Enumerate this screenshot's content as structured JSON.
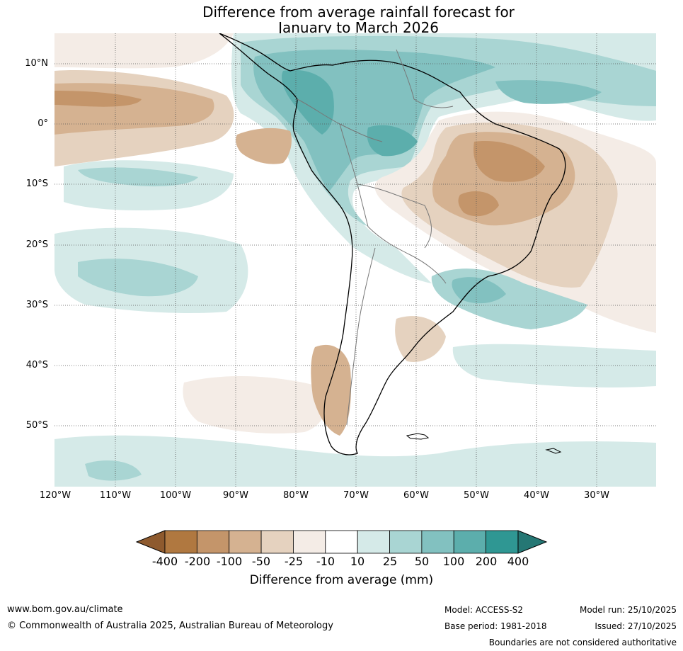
{
  "title": {
    "line1": "Difference from average rainfall forecast for",
    "line2": "January to March 2026"
  },
  "axes": {
    "lat_labels": [
      "10°N",
      "0°",
      "10°S",
      "20°S",
      "30°S",
      "40°S",
      "50°S"
    ],
    "lon_labels": [
      "120°W",
      "110°W",
      "100°W",
      "90°W",
      "80°W",
      "70°W",
      "60°W",
      "50°W",
      "40°W",
      "30°W"
    ]
  },
  "colorbar": {
    "title": "Difference from average (mm)",
    "tick_labels": [
      "-400",
      "-200",
      "-100",
      "-50",
      "-25",
      "-10",
      "10",
      "25",
      "50",
      "100",
      "200",
      "400"
    ],
    "colors": [
      "#8e5a2e",
      "#b07840",
      "#c4956a",
      "#d5b291",
      "#e5d2bf",
      "#f4ece6",
      "#ffffff",
      "#d5eae8",
      "#a9d5d3",
      "#82c1c0",
      "#5caeac",
      "#2f9793",
      "#257774"
    ]
  },
  "footer": {
    "website": "www.bom.gov.au/climate",
    "copyright": "© Commonwealth of Australia 2025, Australian Bureau of Meteorology",
    "model": "Model: ACCESS-S2",
    "base_period": "Base period: 1981-2018",
    "model_run": "Model run: 25/10/2025",
    "issued": "Issued: 27/10/2025",
    "disclaimer": "Boundaries are not considered authoritative"
  }
}
